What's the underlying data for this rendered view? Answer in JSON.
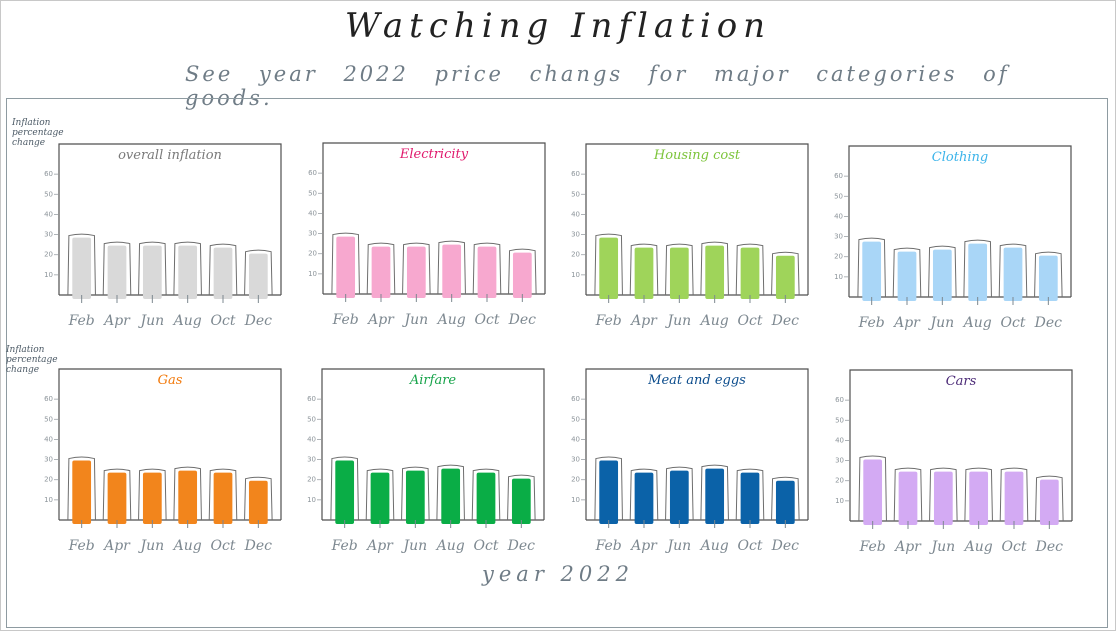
{
  "title": "Watching Inflation",
  "subtitle": "See year 2022 price changs for major categories of goods.",
  "xlabel": "year 2022",
  "ylabel": "Inflation percentage change",
  "chart_data": [
    {
      "type": "bar",
      "title": "overall inflation",
      "color": "#d9d9d9",
      "categories": [
        "Feb",
        "Apr",
        "Jun",
        "Aug",
        "Oct",
        "Dec"
      ],
      "values": [
        30,
        26,
        26,
        26,
        25,
        22
      ],
      "yticks": [
        10,
        20,
        30,
        40,
        50,
        60
      ],
      "ylim": [
        0,
        70
      ]
    },
    {
      "type": "bar",
      "title": "Electricity",
      "color": "#f7a8cf",
      "categories": [
        "Feb",
        "Apr",
        "Jun",
        "Aug",
        "Oct",
        "Dec"
      ],
      "values": [
        30,
        25,
        25,
        26,
        25,
        22
      ],
      "yticks": [
        10,
        20,
        30,
        40,
        50,
        60
      ],
      "ylim": [
        0,
        70
      ]
    },
    {
      "type": "bar",
      "title": "Housing cost",
      "color": "#9fd45a",
      "categories": [
        "Feb",
        "Apr",
        "Jun",
        "Aug",
        "Oct",
        "Dec"
      ],
      "values": [
        30,
        25,
        25,
        26,
        25,
        21
      ],
      "yticks": [
        10,
        20,
        30,
        40,
        50,
        60
      ],
      "ylim": [
        0,
        70
      ]
    },
    {
      "type": "bar",
      "title": "Clothing",
      "color": "#a9d6f7",
      "categories": [
        "Feb",
        "Apr",
        "Jun",
        "Aug",
        "Oct",
        "Dec"
      ],
      "values": [
        29,
        24,
        25,
        28,
        26,
        22
      ],
      "yticks": [
        10,
        20,
        30,
        40,
        50,
        60
      ],
      "ylim": [
        0,
        70
      ]
    },
    {
      "type": "bar",
      "title": "Gas",
      "color": "#f2851c",
      "categories": [
        "Feb",
        "Apr",
        "Jun",
        "Aug",
        "Oct",
        "Dec"
      ],
      "values": [
        31,
        25,
        25,
        26,
        25,
        21
      ],
      "yticks": [
        10,
        20,
        30,
        40,
        50,
        60
      ],
      "ylim": [
        0,
        70
      ]
    },
    {
      "type": "bar",
      "title": "Airfare",
      "color": "#0aad46",
      "categories": [
        "Feb",
        "Apr",
        "Jun",
        "Aug",
        "Oct",
        "Dec"
      ],
      "values": [
        31,
        25,
        26,
        27,
        25,
        22
      ],
      "yticks": [
        10,
        20,
        30,
        40,
        50,
        60
      ],
      "ylim": [
        0,
        70
      ]
    },
    {
      "type": "bar",
      "title": "Meat and eggs",
      "color": "#0b62a8",
      "categories": [
        "Feb",
        "Apr",
        "Jun",
        "Aug",
        "Oct",
        "Dec"
      ],
      "values": [
        31,
        25,
        26,
        27,
        25,
        21
      ],
      "yticks": [
        10,
        20,
        30,
        40,
        50,
        60
      ],
      "ylim": [
        0,
        70
      ]
    },
    {
      "type": "bar",
      "title": "Cars",
      "color": "#d3aaf3",
      "categories": [
        "Feb",
        "Apr",
        "Jun",
        "Aug",
        "Oct",
        "Dec"
      ],
      "values": [
        32,
        26,
        26,
        26,
        26,
        22
      ],
      "yticks": [
        10,
        20,
        30,
        40,
        50,
        60
      ],
      "ylim": [
        0,
        70
      ]
    }
  ],
  "colors": {
    "title_text": [
      "#7a7a7a",
      "#e0186c",
      "#7cc43a",
      "#3cb4ea",
      "#f27a0c",
      "#17a34a",
      "#0b4c8c",
      "#4b2a77"
    ],
    "axis": "#555555",
    "outline": "#6e6e6e"
  }
}
